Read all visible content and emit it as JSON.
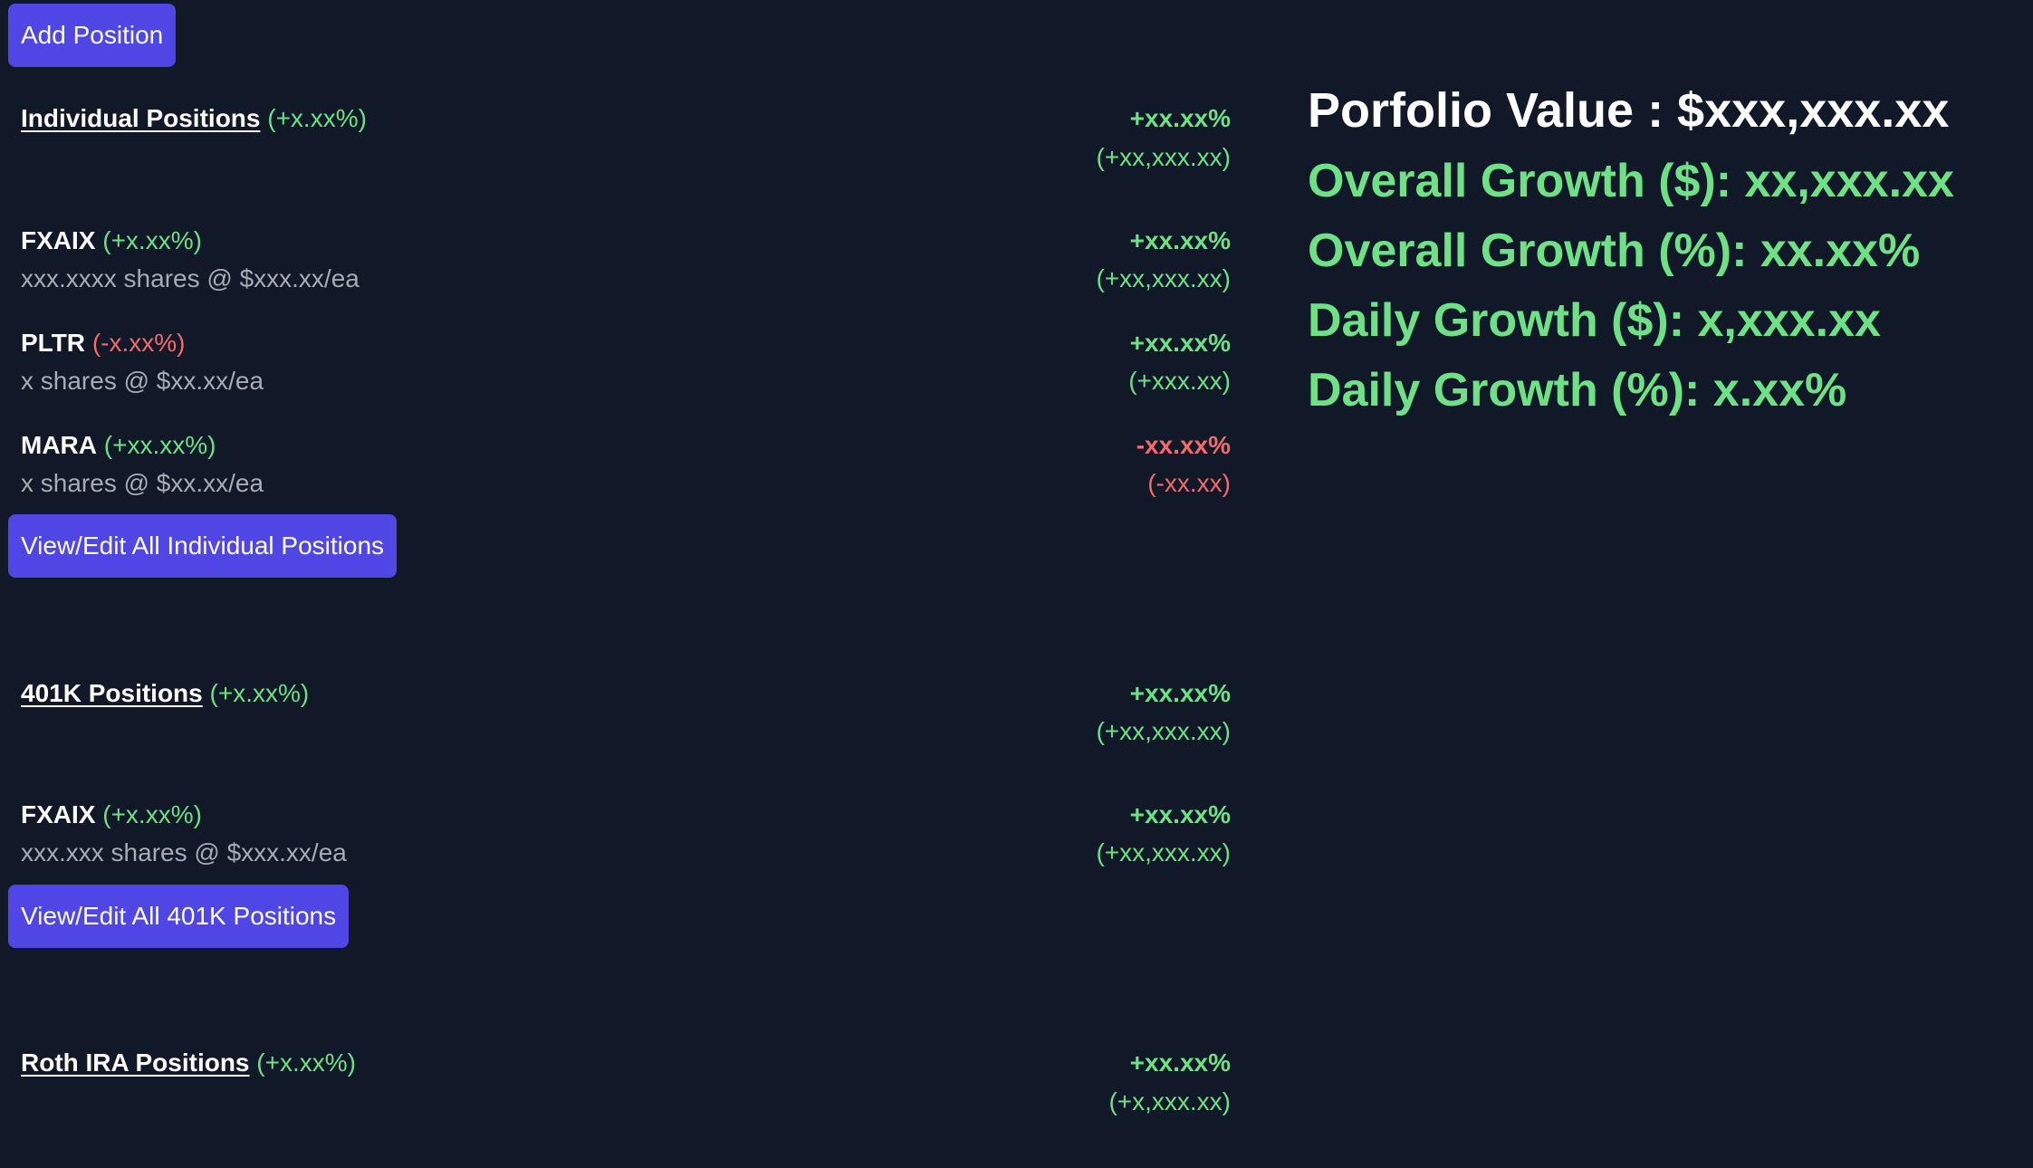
{
  "toolbar": {
    "add_position_label": "Add Position"
  },
  "sections": {
    "individual": {
      "title": "Individual Positions",
      "change_pct": "(+x.xx%)",
      "total_pct": "+xx.xx%",
      "total_amount": "(+xx,xxx.xx)",
      "view_edit_label": "View/Edit All Individual Positions",
      "positions": [
        {
          "ticker": "FXAIX",
          "change_pct": "(+x.xx%)",
          "detail": "xxx.xxxx shares @ $xxx.xx/ea",
          "total_pct": "+xx.xx%",
          "total_amount": "(+xx,xxx.xx)"
        },
        {
          "ticker": "PLTR",
          "change_pct": "(-x.xx%)",
          "detail": "x shares @ $xx.xx/ea",
          "total_pct": "+xx.xx%",
          "total_amount": "(+xxx.xx)"
        },
        {
          "ticker": "MARA",
          "change_pct": "(+xx.xx%)",
          "detail": "x shares @ $xx.xx/ea",
          "total_pct": "-xx.xx%",
          "total_amount": "(-xx.xx)"
        }
      ]
    },
    "k401": {
      "title": "401K Positions",
      "change_pct": "(+x.xx%)",
      "total_pct": "+xx.xx%",
      "total_amount": "(+xx,xxx.xx)",
      "view_edit_label": "View/Edit All 401K Positions",
      "positions": [
        {
          "ticker": "FXAIX",
          "change_pct": "(+x.xx%)",
          "detail": "xxx.xxx shares @ $xxx.xx/ea",
          "total_pct": "+xx.xx%",
          "total_amount": "(+xx,xxx.xx)"
        }
      ]
    },
    "roth": {
      "title": "Roth IRA Positions",
      "change_pct": "(+x.xx%)",
      "total_pct": "+xx.xx%",
      "total_amount": "(+x,xxx.xx)"
    }
  },
  "summary": {
    "portfolio_value": "Porfolio Value : $xxx,xxx.xx",
    "overall_growth_dollar": "Overall Growth ($): xx,xxx.xx",
    "overall_growth_pct": "Overall Growth (%): xx.xx%",
    "daily_growth_dollar": "Daily Growth ($): x,xxx.xx",
    "daily_growth_pct": "Daily Growth (%): x.xx%"
  },
  "colors": {
    "background": "#111827",
    "accent_button": "#4f46e5",
    "positive": "#6ee085",
    "negative": "#f26b6b",
    "muted_text": "#a7abb3"
  }
}
